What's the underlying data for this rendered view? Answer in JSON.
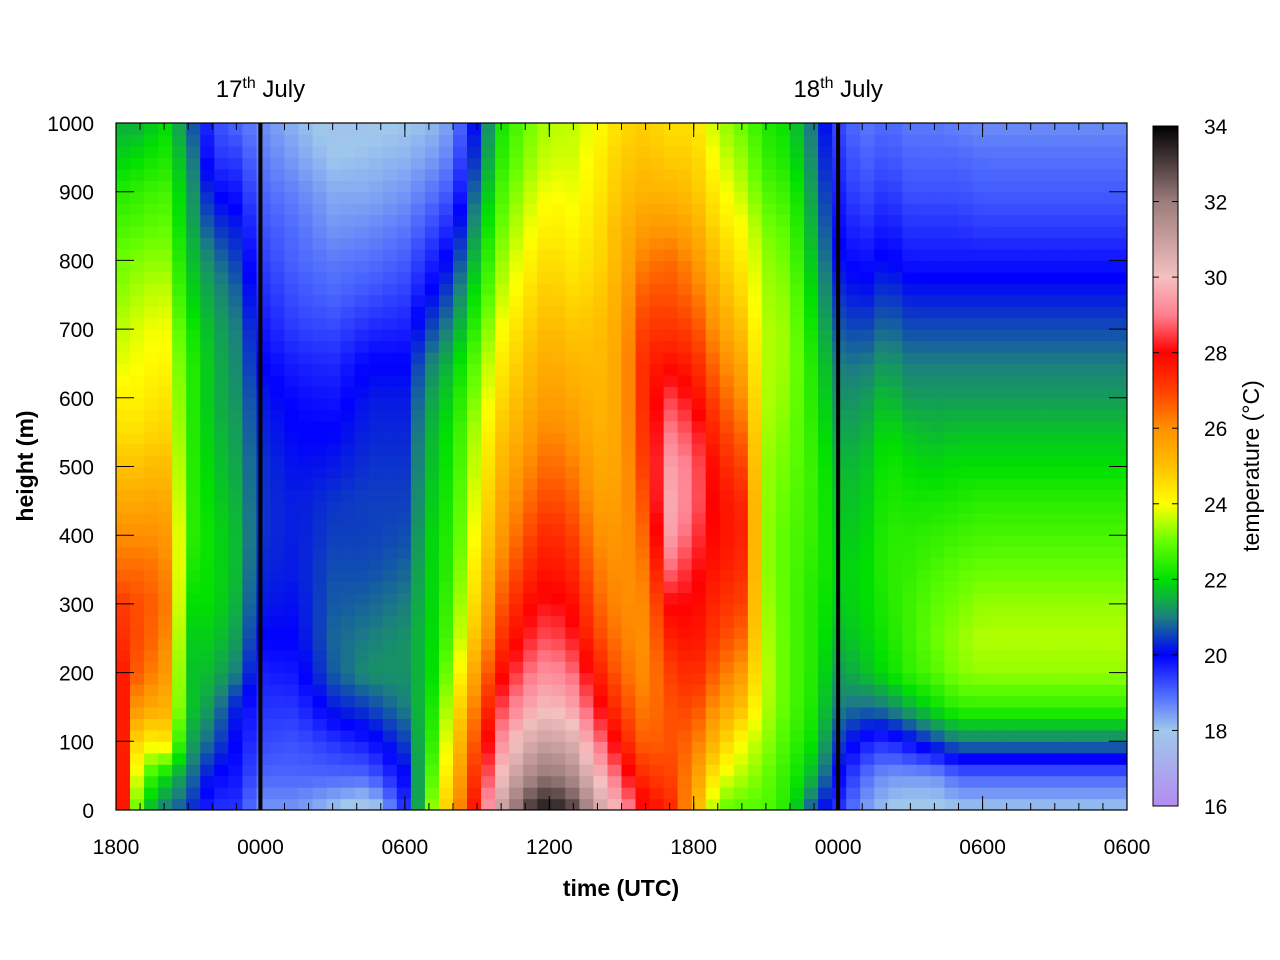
{
  "chart_data": {
    "type": "heatmap",
    "xlabel": "time (UTC)",
    "ylabel": "height (m)",
    "colorbar_label": "temperature (°C)",
    "xlim": [
      18,
      60
    ],
    "ylim": [
      0,
      1000
    ],
    "clim": [
      16,
      34
    ],
    "x_ticks": [
      {
        "value": 18,
        "label": "1800"
      },
      {
        "value": 24,
        "label": "0000"
      },
      {
        "value": 30,
        "label": "0600"
      },
      {
        "value": 36,
        "label": "1200"
      },
      {
        "value": 42,
        "label": "1800"
      },
      {
        "value": 48,
        "label": "0000"
      },
      {
        "value": 54,
        "label": "0600"
      }
    ],
    "y_ticks": [
      0,
      100,
      200,
      300,
      400,
      500,
      600,
      700,
      800,
      900,
      1000
    ],
    "colorbar_ticks": [
      16,
      18,
      20,
      22,
      24,
      26,
      28,
      30,
      32,
      34
    ],
    "day_markers": [
      {
        "x": 24,
        "day": "17",
        "suffix": "th",
        "month": "July"
      },
      {
        "x": 48,
        "day": "18",
        "suffix": "th",
        "month": "July"
      }
    ],
    "colormap": [
      {
        "value": 16,
        "color": "#b48cf0"
      },
      {
        "value": 18,
        "color": "#9fc8ec"
      },
      {
        "value": 19,
        "color": "#4a66ff"
      },
      {
        "value": 20,
        "color": "#0000ff"
      },
      {
        "value": 21,
        "color": "#1c7f7f"
      },
      {
        "value": 22,
        "color": "#00e000"
      },
      {
        "value": 23,
        "color": "#66ff00"
      },
      {
        "value": 24,
        "color": "#ffff00"
      },
      {
        "value": 25,
        "color": "#ffc000"
      },
      {
        "value": 26,
        "color": "#ff9000"
      },
      {
        "value": 27,
        "color": "#ff4000"
      },
      {
        "value": 28,
        "color": "#ff0000"
      },
      {
        "value": 29,
        "color": "#ff8090"
      },
      {
        "value": 30,
        "color": "#f4c0c0"
      },
      {
        "value": 32,
        "color": "#9c7c7c"
      },
      {
        "value": 34,
        "color": "#000000"
      }
    ],
    "profile_heights": [
      0,
      50,
      100,
      150,
      200,
      250,
      300,
      350,
      400,
      450,
      500,
      550,
      600,
      650,
      700,
      750,
      800,
      850,
      900,
      950,
      1000
    ],
    "profiles": [
      {
        "time": 18.0,
        "temps": [
          30.0,
          29.5,
          29.0,
          28.5,
          28.0,
          27.5,
          27.2,
          26.5,
          26.0,
          25.5,
          25.0,
          24.5,
          24.2,
          23.8,
          23.5,
          23.2,
          23.0,
          22.7,
          22.3,
          21.8,
          21.5
        ]
      },
      {
        "time": 19.0,
        "temps": [
          22.0,
          23.0,
          24.0,
          25.5,
          26.5,
          26.8,
          26.8,
          26.5,
          26.0,
          25.5,
          25.0,
          24.5,
          24.2,
          24.0,
          23.8,
          23.5,
          23.2,
          22.8,
          22.5,
          22.0,
          21.5
        ]
      },
      {
        "time": 20.0,
        "temps": [
          21.0,
          22.0,
          24.5,
          25.5,
          26.0,
          26.3,
          26.5,
          26.3,
          26.0,
          25.6,
          25.2,
          24.8,
          24.5,
          24.2,
          24.0,
          23.7,
          23.3,
          23.0,
          22.7,
          22.3,
          22.0
        ]
      },
      {
        "time": 21.0,
        "temps": [
          20.5,
          21.0,
          21.5,
          21.8,
          21.7,
          21.8,
          22.0,
          22.3,
          22.5,
          22.5,
          22.5,
          22.5,
          22.5,
          22.5,
          22.3,
          22.0,
          21.8,
          21.6,
          21.5,
          21.3,
          21.0
        ]
      },
      {
        "time": 22.0,
        "temps": [
          19.5,
          20.0,
          20.7,
          21.2,
          21.6,
          21.8,
          22.0,
          22.0,
          22.0,
          21.9,
          21.8,
          21.7,
          21.6,
          21.6,
          21.5,
          21.3,
          21.0,
          20.5,
          20.0,
          19.5,
          19.3
        ]
      },
      {
        "time": 23.0,
        "temps": [
          19.5,
          19.8,
          20.0,
          20.2,
          21.0,
          21.3,
          21.5,
          21.6,
          21.6,
          21.5,
          21.4,
          21.3,
          21.2,
          21.1,
          21.0,
          20.8,
          20.5,
          20.2,
          19.8,
          19.4,
          19.0
        ]
      },
      {
        "time": 24.0,
        "temps": [
          18.5,
          19.0,
          19.3,
          19.5,
          19.7,
          20.0,
          20.2,
          20.3,
          20.4,
          20.4,
          20.4,
          20.3,
          20.2,
          20.0,
          19.8,
          19.6,
          19.4,
          19.2,
          19.0,
          18.8,
          18.6
        ]
      },
      {
        "time": 25.5,
        "temps": [
          18.5,
          19.0,
          19.2,
          19.5,
          19.8,
          20.0,
          20.1,
          20.2,
          20.2,
          20.2,
          20.1,
          20.0,
          19.9,
          19.7,
          19.4,
          19.2,
          19.0,
          18.9,
          18.7,
          18.4,
          18.2
        ]
      },
      {
        "time": 27.0,
        "temps": [
          18.0,
          19.0,
          19.5,
          20.2,
          20.7,
          20.8,
          20.7,
          20.6,
          20.5,
          20.4,
          20.2,
          20.0,
          19.8,
          19.6,
          19.3,
          19.0,
          18.8,
          18.5,
          18.3,
          18.0,
          17.8
        ]
      },
      {
        "time": 28.5,
        "temps": [
          17.5,
          19.0,
          19.8,
          20.5,
          21.2,
          21.0,
          20.8,
          20.6,
          20.5,
          20.5,
          20.4,
          20.3,
          20.2,
          20.0,
          19.6,
          19.2,
          18.9,
          18.6,
          18.3,
          18.1,
          17.9
        ]
      },
      {
        "time": 30.0,
        "temps": [
          19.5,
          20.0,
          20.5,
          21.0,
          21.2,
          21.2,
          21.0,
          20.8,
          20.6,
          20.5,
          20.4,
          20.3,
          20.2,
          20.0,
          19.7,
          19.4,
          19.1,
          18.8,
          18.5,
          18.2,
          18.0
        ]
      },
      {
        "time": 31.0,
        "temps": [
          23.0,
          22.5,
          22.2,
          22.0,
          21.8,
          21.8,
          21.8,
          21.8,
          21.8,
          21.7,
          21.6,
          21.5,
          21.3,
          21.0,
          20.5,
          20.0,
          19.6,
          19.2,
          18.8,
          18.4,
          18.1
        ]
      },
      {
        "time": 32.0,
        "temps": [
          25.5,
          25.0,
          24.5,
          24.0,
          23.5,
          23.0,
          22.8,
          22.6,
          22.5,
          22.4,
          22.3,
          22.2,
          22.0,
          21.7,
          21.2,
          20.7,
          20.2,
          19.7,
          19.2,
          18.8,
          18.5
        ]
      },
      {
        "time": 33.0,
        "temps": [
          28.0,
          27.5,
          27.0,
          26.5,
          25.8,
          25.2,
          24.8,
          24.5,
          24.2,
          24.0,
          23.8,
          23.6,
          23.3,
          23.0,
          22.6,
          22.2,
          21.8,
          21.4,
          21.0,
          20.6,
          20.3
        ]
      },
      {
        "time": 34.0,
        "temps": [
          31.0,
          30.0,
          29.2,
          28.5,
          27.8,
          27.2,
          26.7,
          26.2,
          25.8,
          25.5,
          25.2,
          24.9,
          24.6,
          24.3,
          24.0,
          23.6,
          23.3,
          23.0,
          22.7,
          22.4,
          22.2
        ]
      },
      {
        "time": 35.0,
        "temps": [
          33.0,
          31.5,
          30.5,
          29.5,
          28.8,
          28.2,
          27.8,
          27.3,
          26.8,
          26.4,
          26.0,
          25.6,
          25.3,
          25.0,
          24.7,
          24.4,
          24.1,
          23.8,
          23.5,
          23.2,
          23.0
        ]
      },
      {
        "time": 36.0,
        "temps": [
          33.8,
          32.2,
          31.0,
          30.0,
          29.3,
          28.7,
          28.2,
          27.8,
          27.5,
          27.0,
          26.6,
          26.2,
          25.8,
          25.5,
          25.2,
          24.9,
          24.6,
          24.3,
          24.0,
          23.7,
          23.5
        ]
      },
      {
        "time": 37.0,
        "temps": [
          33.0,
          31.5,
          30.5,
          29.5,
          28.8,
          28.2,
          27.8,
          27.4,
          27.0,
          26.6,
          26.2,
          25.8,
          25.5,
          25.2,
          24.9,
          24.6,
          24.3,
          24.1,
          23.9,
          23.7,
          23.6
        ]
      },
      {
        "time": 38.0,
        "temps": [
          31.0,
          30.0,
          29.0,
          28.2,
          27.6,
          27.0,
          26.6,
          26.3,
          26.0,
          25.7,
          25.5,
          25.3,
          25.2,
          25.1,
          25.0,
          24.8,
          24.6,
          24.5,
          24.3,
          24.2,
          24.0
        ]
      },
      {
        "time": 39.0,
        "temps": [
          29.5,
          28.5,
          27.6,
          27.0,
          26.5,
          26.2,
          26.0,
          25.9,
          25.8,
          25.7,
          25.6,
          25.6,
          25.6,
          25.6,
          25.6,
          25.5,
          25.3,
          25.2,
          25.0,
          24.8,
          24.6
        ]
      },
      {
        "time": 40.0,
        "temps": [
          28.0,
          27.2,
          26.5,
          26.2,
          26.0,
          26.0,
          26.1,
          26.3,
          26.6,
          26.9,
          27.2,
          27.4,
          27.5,
          27.5,
          27.2,
          26.8,
          26.3,
          25.8,
          25.3,
          25.0,
          24.8
        ]
      },
      {
        "time": 41.0,
        "temps": [
          27.5,
          27.0,
          26.8,
          26.8,
          27.0,
          27.5,
          28.0,
          28.8,
          29.5,
          29.7,
          29.5,
          29.0,
          28.5,
          27.8,
          27.2,
          26.8,
          26.5,
          25.8,
          25.2,
          24.8,
          24.5
        ]
      },
      {
        "time": 42.0,
        "temps": [
          25.5,
          26.0,
          26.5,
          27.0,
          27.5,
          27.8,
          28.0,
          28.2,
          28.5,
          28.8,
          28.8,
          28.5,
          28.0,
          27.5,
          27.0,
          26.5,
          26.0,
          25.5,
          25.0,
          24.8,
          24.5
        ]
      },
      {
        "time": 43.0,
        "temps": [
          23.0,
          24.0,
          25.0,
          25.8,
          26.5,
          27.0,
          27.3,
          27.6,
          27.8,
          27.8,
          27.6,
          27.2,
          26.8,
          26.3,
          25.8,
          25.3,
          24.9,
          24.5,
          24.2,
          23.8,
          23.5
        ]
      },
      {
        "time": 44.0,
        "temps": [
          22.8,
          23.5,
          24.0,
          25.0,
          25.8,
          26.5,
          27.0,
          27.3,
          27.5,
          27.4,
          27.0,
          26.5,
          26.0,
          25.5,
          25.0,
          24.6,
          24.3,
          24.0,
          23.6,
          23.3,
          23.0
        ]
      },
      {
        "time": 45.0,
        "temps": [
          22.8,
          23.0,
          23.3,
          23.5,
          23.6,
          23.5,
          23.4,
          23.3,
          23.3,
          23.3,
          23.3,
          23.4,
          23.5,
          23.5,
          23.5,
          23.4,
          23.3,
          23.1,
          22.8,
          22.5,
          22.3
        ]
      },
      {
        "time": 46.0,
        "temps": [
          22.2,
          22.4,
          22.6,
          22.8,
          22.8,
          22.8,
          22.8,
          22.8,
          22.8,
          22.9,
          23.0,
          23.1,
          23.2,
          23.3,
          23.3,
          23.2,
          23.0,
          22.8,
          22.5,
          22.2,
          22.0
        ]
      },
      {
        "time": 47.0,
        "temps": [
          20.5,
          21.5,
          22.0,
          22.2,
          22.3,
          22.3,
          22.3,
          22.4,
          22.5,
          22.5,
          22.5,
          22.4,
          22.3,
          22.2,
          22.0,
          21.8,
          21.6,
          21.4,
          21.2,
          21.0,
          20.8
        ]
      },
      {
        "time": 48.0,
        "temps": [
          19.5,
          20.0,
          20.5,
          21.0,
          21.3,
          21.6,
          21.8,
          21.9,
          21.8,
          21.7,
          21.6,
          21.4,
          21.2,
          21.0,
          20.7,
          20.4,
          20.1,
          19.9,
          19.7,
          19.5,
          19.3
        ]
      },
      {
        "time": 49.0,
        "temps": [
          18.5,
          19.0,
          19.8,
          20.8,
          21.6,
          21.8,
          21.9,
          21.9,
          21.8,
          21.7,
          21.6,
          21.4,
          21.2,
          20.9,
          20.5,
          20.1,
          19.8,
          19.5,
          19.2,
          19.0,
          18.8
        ]
      },
      {
        "time": 50.0,
        "temps": [
          18.0,
          18.5,
          19.5,
          21.0,
          22.0,
          22.2,
          22.3,
          22.4,
          22.4,
          22.3,
          22.2,
          22.0,
          21.7,
          21.3,
          20.9,
          20.5,
          20.1,
          19.8,
          19.5,
          19.2,
          19.0
        ]
      },
      {
        "time": 51.0,
        "temps": [
          17.8,
          18.5,
          20.0,
          21.5,
          22.5,
          22.6,
          22.6,
          22.5,
          22.4,
          22.2,
          22.0,
          21.7,
          21.3,
          21.0,
          20.6,
          20.2,
          19.8,
          19.5,
          19.2,
          19.0,
          18.8
        ]
      },
      {
        "time": 52.0,
        "temps": [
          17.8,
          18.5,
          20.5,
          22.0,
          22.8,
          23.0,
          22.9,
          22.7,
          22.5,
          22.2,
          21.9,
          21.6,
          21.3,
          21.0,
          20.6,
          20.2,
          19.8,
          19.5,
          19.2,
          19.0,
          18.8
        ]
      },
      {
        "time": 53.0,
        "temps": [
          18.0,
          19.0,
          21.0,
          22.5,
          23.2,
          23.3,
          23.1,
          22.9,
          22.6,
          22.3,
          22.0,
          21.7,
          21.3,
          21.0,
          20.6,
          20.2,
          19.8,
          19.5,
          19.2,
          19.0,
          18.7
        ]
      },
      {
        "time": 54.0,
        "temps": [
          18.0,
          19.0,
          21.0,
          22.5,
          23.3,
          23.5,
          23.3,
          23.0,
          22.7,
          22.4,
          22.0,
          21.7,
          21.3,
          21.0,
          20.6,
          20.2,
          19.8,
          19.4,
          19.1,
          18.9,
          18.6
        ]
      }
    ]
  }
}
